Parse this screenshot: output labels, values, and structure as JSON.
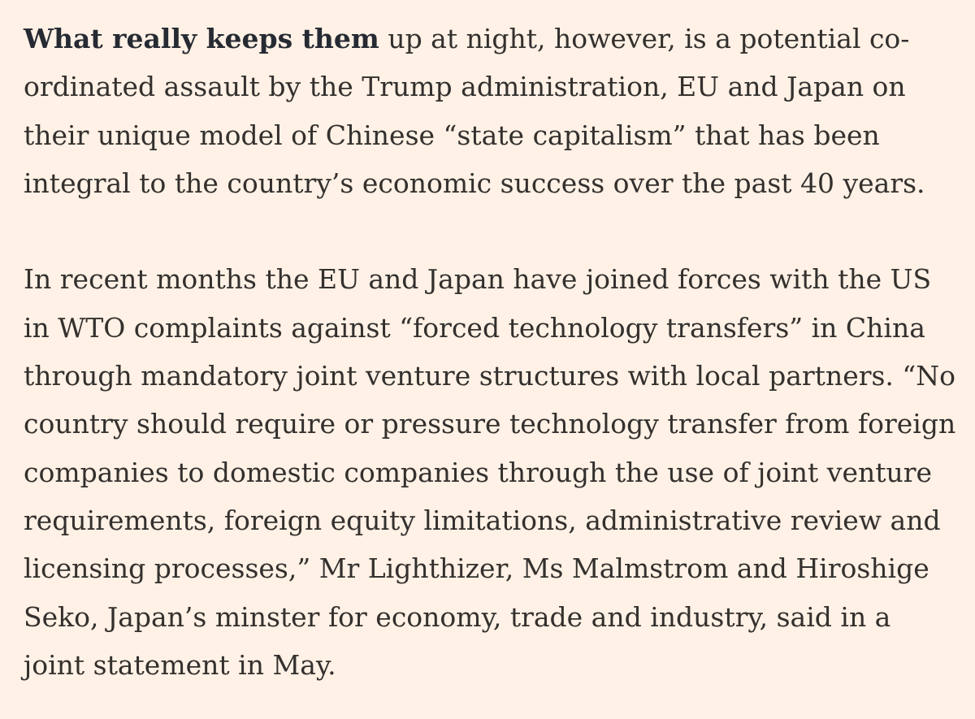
{
  "article": {
    "paragraph_1": {
      "lead_in": "What really keeps them",
      "line_1_rest": " up at night, however, is a potential co-",
      "lines": [
        "ordinated assault by the Trump administration, EU and Japan on",
        "their unique model of Chinese “state capitalism” that has been",
        "integral to the country’s economic success over the past 40 years."
      ]
    },
    "paragraph_2": {
      "lines": [
        "In recent months the EU and Japan have joined forces with the US",
        "in WTO complaints against “forced technology transfers” in China",
        "through mandatory joint venture structures with local partners. “No",
        "country should require or pressure technology transfer from foreign",
        "companies to domestic companies through the use of joint venture",
        "requirements, foreign equity limitations, administrative review and",
        "licensing processes,” Mr Lighthizer, Ms Malmstrom and Hiroshige",
        "Seko, Japan’s minster for economy, trade and industry, said in a",
        "joint statement in May."
      ]
    }
  }
}
